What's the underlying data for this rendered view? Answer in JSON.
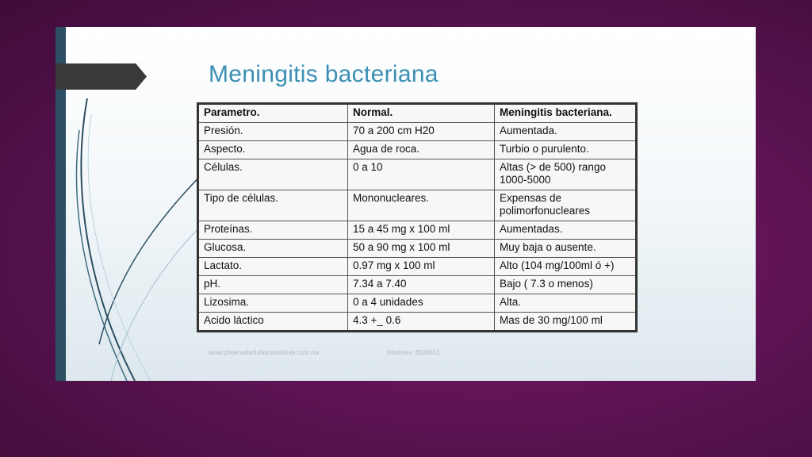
{
  "slide": {
    "title": "Meningitis bacteriana",
    "table": {
      "headers": [
        "Parametro.",
        "Normal.",
        "Meningitis bacteriana."
      ],
      "rows": [
        [
          "Presión.",
          "70 a 200 cm H20",
          "Aumentada."
        ],
        [
          "Aspecto.",
          "Agua de roca.",
          "Turbio o purulento."
        ],
        [
          "Células.",
          "0 a 10",
          "Altas (> de 500) rango 1000-5000"
        ],
        [
          "Tipo de células.",
          "Mononucleares.",
          "Expensas de polimorfonucleares"
        ],
        [
          "Proteínas.",
          "15 a 45 mg x 100 ml",
          "Aumentadas."
        ],
        [
          "Glucosa.",
          "50 a 90 mg x 100 ml",
          "Muy baja o ausente."
        ],
        [
          "Lactato.",
          "0.97 mg x 100 ml",
          "Alto (104 mg/100ml ó +)"
        ],
        [
          "pH.",
          "7.34 a 7.40",
          "Bajo ( 7.3 o menos)"
        ],
        [
          "Lizosima.",
          "0 a 4 unidades",
          "Alta."
        ],
        [
          "Acido láctico",
          "4.3 +_ 0.6",
          "Mas de 30 mg/100 ml"
        ]
      ]
    },
    "footer": {
      "website": "www.phoenedsolutionsinstitute.com.mx",
      "phone": "Informes: 3624651"
    }
  }
}
